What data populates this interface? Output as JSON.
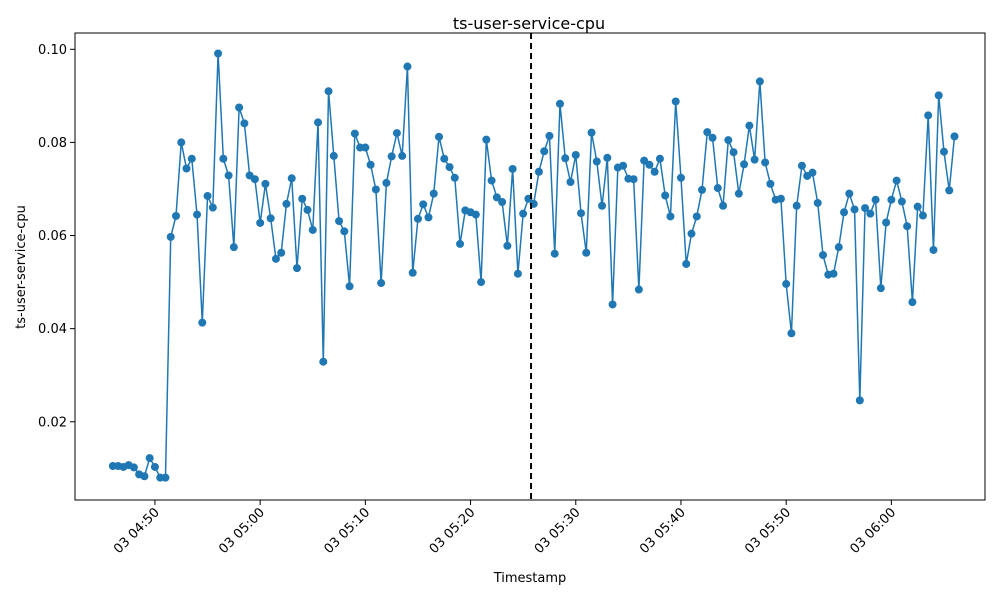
{
  "chart_data": {
    "type": "line",
    "title": "ts-user-service-cpu",
    "xlabel": "Timestamp",
    "ylabel": "ts-user-service-cpu",
    "series_color": "#1f77b4",
    "marker": "circle",
    "grid": false,
    "legend": "none",
    "x_start": "03 04:46:00",
    "x_step_seconds": 30,
    "xlim": [
      "03 04:42:24",
      "03 06:08:54"
    ],
    "ylim": [
      0.0032,
      0.1035
    ],
    "x_ticks": [
      "03 04:50",
      "03 05:00",
      "03 05:10",
      "03 05:20",
      "03 05:30",
      "03 05:40",
      "03 05:50",
      "03 06:00"
    ],
    "y_ticks": [
      "0.02",
      "0.04",
      "0.06",
      "0.08",
      "0.10"
    ],
    "y_tick_values": [
      0.02,
      0.04,
      0.06,
      0.08,
      0.1
    ],
    "vline": {
      "x": "03 05:25:45",
      "style": "dashed",
      "color": "#000000"
    },
    "values": [
      0.0105,
      0.0105,
      0.0103,
      0.0107,
      0.0102,
      0.0087,
      0.0083,
      0.0122,
      0.0103,
      0.008,
      0.008,
      0.0597,
      0.0642,
      0.08,
      0.0744,
      0.0765,
      0.0645,
      0.0413,
      0.0685,
      0.066,
      0.0991,
      0.0765,
      0.0729,
      0.0575,
      0.0875,
      0.0841,
      0.0729,
      0.0721,
      0.0627,
      0.0711,
      0.0637,
      0.055,
      0.0563,
      0.0668,
      0.0723,
      0.053,
      0.0679,
      0.0655,
      0.0612,
      0.0843,
      0.0329,
      0.091,
      0.0771,
      0.0631,
      0.0609,
      0.0491,
      0.0819,
      0.0789,
      0.0789,
      0.0752,
      0.0699,
      0.0498,
      0.0713,
      0.077,
      0.082,
      0.0771,
      0.0963,
      0.052,
      0.0636,
      0.0667,
      0.0639,
      0.069,
      0.0812,
      0.0765,
      0.0747,
      0.0724,
      0.0582,
      0.0654,
      0.065,
      0.0645,
      0.05,
      0.0806,
      0.0718,
      0.0682,
      0.0672,
      0.0578,
      0.0743,
      0.0518,
      0.0647,
      0.0679,
      0.0668,
      0.0737,
      0.0781,
      0.0814,
      0.0561,
      0.0883,
      0.0766,
      0.0715,
      0.0773,
      0.0648,
      0.0563,
      0.0821,
      0.0759,
      0.0664,
      0.0767,
      0.0452,
      0.0746,
      0.075,
      0.0722,
      0.0721,
      0.0484,
      0.0761,
      0.0752,
      0.0737,
      0.0765,
      0.0686,
      0.0641,
      0.0888,
      0.0724,
      0.0539,
      0.0604,
      0.0641,
      0.0698,
      0.0822,
      0.081,
      0.0702,
      0.0664,
      0.0805,
      0.0779,
      0.069,
      0.0753,
      0.0836,
      0.0763,
      0.0931,
      0.0757,
      0.0711,
      0.0677,
      0.0679,
      0.0496,
      0.039,
      0.0664,
      0.075,
      0.0728,
      0.0735,
      0.067,
      0.0558,
      0.0516,
      0.0518,
      0.0575,
      0.065,
      0.069,
      0.0656,
      0.0246,
      0.0659,
      0.0647,
      0.0677,
      0.0487,
      0.0628,
      0.0677,
      0.0718,
      0.0673,
      0.062,
      0.0457,
      0.0662,
      0.0643,
      0.0858,
      0.0569,
      0.0901,
      0.078,
      0.0697,
      0.0813
    ]
  }
}
